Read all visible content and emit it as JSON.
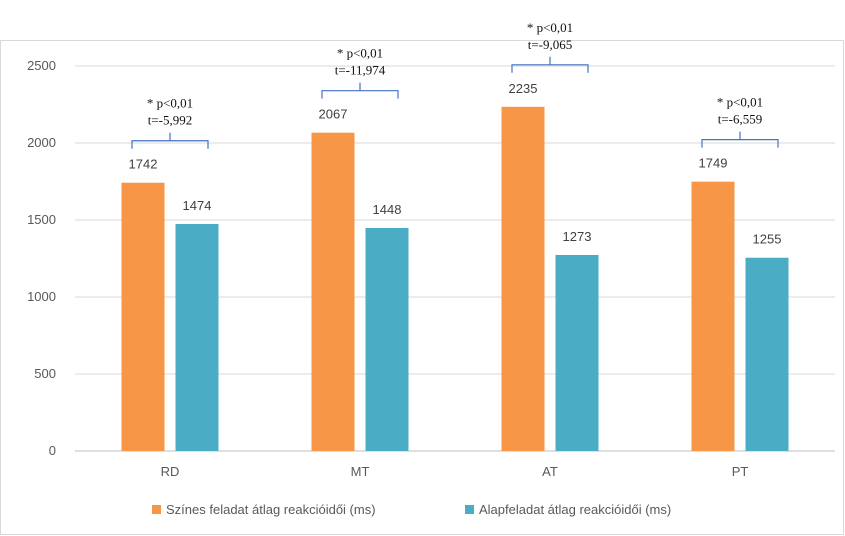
{
  "chart_data": {
    "type": "bar",
    "categories": [
      "RD",
      "MT",
      "AT",
      "PT"
    ],
    "series": [
      {
        "name": "Színes feladat átlag reakcióidői (ms)",
        "values": [
          1742,
          2067,
          2235,
          1749
        ],
        "color": "#F79646"
      },
      {
        "name": "Alapfeladat átlag reakcióidői (ms)",
        "values": [
          1474,
          1448,
          1273,
          1255
        ],
        "color": "#4BACC6"
      }
    ],
    "data_labels": [
      [
        "1742",
        "2067",
        "2235",
        "1749"
      ],
      [
        "1474",
        "1448",
        "1273",
        "1255"
      ]
    ],
    "ylim": [
      0,
      2500
    ],
    "yticks": [
      0,
      500,
      1000,
      1500,
      2000,
      2500
    ],
    "grid": true,
    "legend": "bottom",
    "annotations": [
      {
        "category": "RD",
        "line1": "* p<0,01",
        "line2": "t=-5,992"
      },
      {
        "category": "MT",
        "line1": "* p<0,01",
        "line2": "t=-11,974"
      },
      {
        "category": "AT",
        "line1": "* p<0,01",
        "line2": "t=-9,065"
      },
      {
        "category": "PT",
        "line1": "* p<0,01",
        "line2": "t=-6,559"
      }
    ]
  }
}
